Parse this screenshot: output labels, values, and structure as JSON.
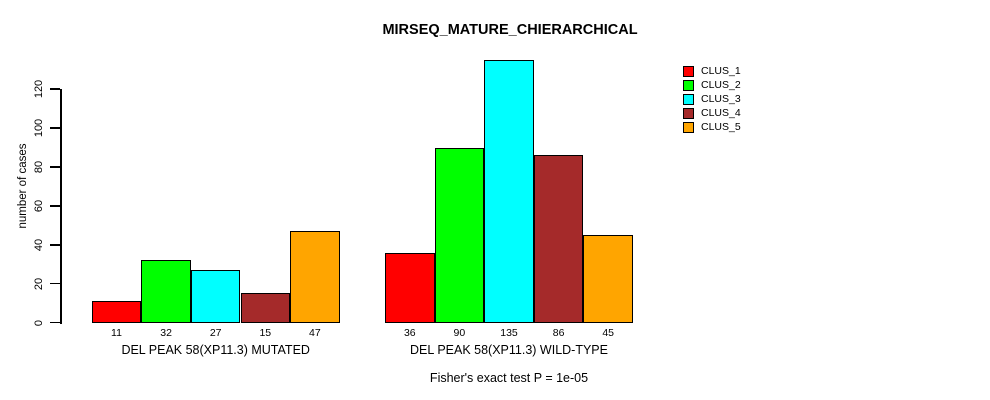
{
  "chart": {
    "title": "MIRSEQ_MATURE_CHIERARCHICAL",
    "ylabel": "number of cases",
    "footnote": "Fisher's exact test P = 1e-05"
  },
  "chart_data": {
    "type": "bar",
    "title": "MIRSEQ_MATURE_CHIERARCHICAL",
    "xlabel": "",
    "ylabel": "number of cases",
    "ylim": [
      0,
      135
    ],
    "yticks": [
      0,
      20,
      40,
      60,
      80,
      100,
      120
    ],
    "grid": false,
    "legend_position": "right-top",
    "groups": [
      {
        "label": "DEL PEAK 58(XP11.3) MUTATED"
      },
      {
        "label": "DEL PEAK 58(XP11.3) WILD-TYPE"
      }
    ],
    "series": [
      {
        "name": "CLUS_1",
        "color": "#FF0000",
        "values": [
          11,
          36
        ]
      },
      {
        "name": "CLUS_2",
        "color": "#00FF00",
        "values": [
          32,
          90
        ]
      },
      {
        "name": "CLUS_3",
        "color": "#00FFFF",
        "values": [
          27,
          135
        ]
      },
      {
        "name": "CLUS_4",
        "color": "#A52A2A",
        "values": [
          15,
          86
        ]
      },
      {
        "name": "CLUS_5",
        "color": "#FFA500",
        "values": [
          47,
          45
        ]
      }
    ],
    "bar_value_labels": [
      [
        11,
        32,
        27,
        15,
        47
      ],
      [
        36,
        90,
        135,
        86,
        45
      ]
    ],
    "annotation": "Fisher's exact test P = 1e-05",
    "bar_border_color": "#000000"
  }
}
